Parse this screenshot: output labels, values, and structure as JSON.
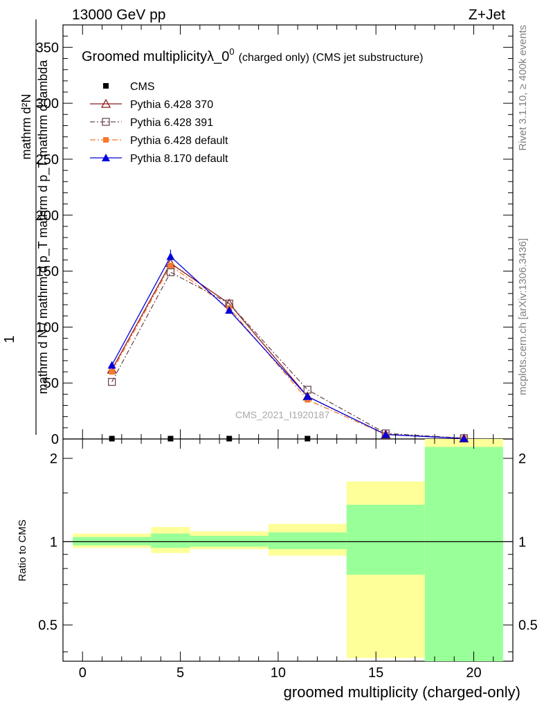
{
  "header": {
    "left": "13000 GeV pp",
    "right": "Z+Jet"
  },
  "side_labels": {
    "rivet": "Rivet 3.1.10, ≥ 400k events",
    "mcplots": "mcplots.cern.ch [arXiv:1306.3436]"
  },
  "watermark": "CMS_2021_I1920187",
  "colors": {
    "cms": "#000000",
    "p370": "#8b1a1a",
    "p391": "#6b4a52",
    "p6def": "#f47a30",
    "p8def": "#0000dd",
    "band_yellow": "#ffff99",
    "band_green": "#99ff99"
  },
  "chart_data": [
    {
      "type": "line",
      "title": "Groomed multiplicityλ_0",
      "title_sup": "0",
      "title_suffix": "(charged only) (CMS jet substructure)",
      "ylabel_num": "mathrm d²N",
      "ylabel_frac": "1",
      "ylabel_den": "mathrm d N / mathrm d p_T mathrm d p_T mathrm d lambda",
      "ylim": [
        0,
        370
      ],
      "xlim": [
        -1,
        22
      ],
      "yticks": [
        0,
        50,
        100,
        150,
        200,
        250,
        300,
        350
      ],
      "ytick_labels": [
        "0",
        "50",
        "100",
        "150",
        "200",
        "250",
        "300",
        "350"
      ],
      "legend_position": "top-left",
      "series": [
        {
          "name": "CMS",
          "style": "cms",
          "x": [
            1.5,
            4.5,
            7.5,
            11.5
          ],
          "y": [
            0.3,
            0.3,
            0.3,
            0.3
          ]
        },
        {
          "name": "Pythia 6.428 370",
          "style": "p370",
          "x": [
            1.5,
            4.5,
            7.5,
            11.5,
            15.5,
            19.5
          ],
          "y": [
            62,
            157,
            121,
            38,
            4,
            0.5
          ]
        },
        {
          "name": "Pythia 6.428 391",
          "style": "p391",
          "x": [
            1.5,
            4.5,
            7.5,
            11.5,
            15.5,
            19.5
          ],
          "y": [
            51,
            149,
            121,
            44,
            5,
            0.7
          ]
        },
        {
          "name": "Pythia 6.428 default",
          "style": "p6def",
          "x": [
            1.5,
            4.5,
            7.5,
            11.5,
            15.5,
            19.5
          ],
          "y": [
            60,
            155,
            117,
            35,
            4,
            0.4
          ]
        },
        {
          "name": "Pythia 8.170 default",
          "style": "p8def",
          "x": [
            1.5,
            4.5,
            7.5,
            11.5,
            15.5,
            19.5
          ],
          "y": [
            66,
            163,
            115,
            38,
            4,
            0.4
          ]
        }
      ]
    },
    {
      "type": "area",
      "ylabel": "Ratio to CMS",
      "xlabel": "groomed multiplicity (charged-only)",
      "yscale": "log",
      "ylim": [
        0.37,
        2.35
      ],
      "xlim": [
        -1,
        22
      ],
      "xticks": [
        0,
        5,
        10,
        15,
        20
      ],
      "xtick_labels": [
        "0",
        "5",
        "10",
        "15",
        "20"
      ],
      "yticks": [
        0.5,
        1,
        2
      ],
      "ytick_labels": [
        "0.5",
        "1",
        "2"
      ],
      "reference_line": 1,
      "bands": [
        {
          "x0": -0.5,
          "x1": 3.5,
          "yellow": [
            0.95,
            1.07
          ],
          "green": [
            0.97,
            1.04
          ]
        },
        {
          "x0": 3.5,
          "x1": 5.5,
          "yellow": [
            0.91,
            1.13
          ],
          "green": [
            0.95,
            1.07
          ]
        },
        {
          "x0": 5.5,
          "x1": 9.5,
          "yellow": [
            0.94,
            1.09
          ],
          "green": [
            0.96,
            1.05
          ]
        },
        {
          "x0": 9.5,
          "x1": 13.5,
          "yellow": [
            0.89,
            1.16
          ],
          "green": [
            0.94,
            1.08
          ]
        },
        {
          "x0": 13.5,
          "x1": 17.5,
          "yellow": [
            0.38,
            1.65
          ],
          "green": [
            0.76,
            1.36
          ]
        },
        {
          "x0": 17.5,
          "x1": 21.5,
          "yellow": [
            0.35,
            2.4
          ],
          "green": [
            0.35,
            2.2
          ]
        }
      ]
    }
  ]
}
